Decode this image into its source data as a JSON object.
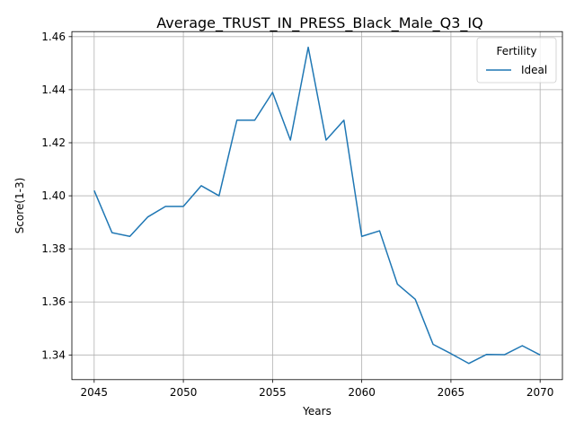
{
  "chart_data": {
    "type": "line",
    "title": "Average_TRUST_IN_PRESS_Black_Male_Q3_IQ",
    "xlabel": "Years",
    "ylabel": "Score(1-3)",
    "xlim": [
      2043.75,
      2071.25
    ],
    "ylim": [
      1.3307,
      1.4619
    ],
    "xticks": [
      2045,
      2050,
      2055,
      2060,
      2065,
      2070
    ],
    "yticks": [
      1.34,
      1.36,
      1.38,
      1.4,
      1.42,
      1.44,
      1.46
    ],
    "ytick_labels": [
      "1.34",
      "1.36",
      "1.38",
      "1.40",
      "1.42",
      "1.44",
      "1.46"
    ],
    "grid": true,
    "legend": {
      "title": "Fertility",
      "placement": "top-right"
    },
    "x": [
      2045,
      2046,
      2047,
      2048,
      2049,
      2050,
      2051,
      2052,
      2053,
      2054,
      2055,
      2056,
      2057,
      2058,
      2059,
      2060,
      2061,
      2062,
      2063,
      2064,
      2065,
      2066,
      2067,
      2068,
      2069,
      2070
    ],
    "series": [
      {
        "name": "Ideal",
        "color": "#1f77b4",
        "values": [
          1.402,
          1.3861,
          1.3847,
          1.392,
          1.396,
          1.396,
          1.4038,
          1.4,
          1.4285,
          1.4285,
          1.439,
          1.421,
          1.456,
          1.421,
          1.4285,
          1.3847,
          1.3868,
          1.3667,
          1.361,
          1.344,
          1.3405,
          1.3368,
          1.3402,
          1.3401,
          1.3435,
          1.34
        ]
      }
    ]
  }
}
